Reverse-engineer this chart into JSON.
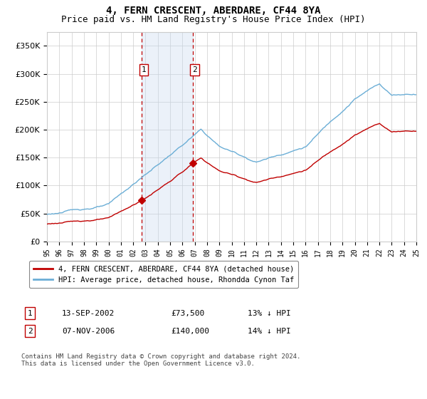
{
  "title": "4, FERN CRESCENT, ABERDARE, CF44 8YA",
  "subtitle": "Price paid vs. HM Land Registry's House Price Index (HPI)",
  "ylim": [
    0,
    375000
  ],
  "yticks": [
    0,
    50000,
    100000,
    150000,
    200000,
    250000,
    300000,
    350000
  ],
  "ytick_labels": [
    "£0",
    "£50K",
    "£100K",
    "£150K",
    "£200K",
    "£250K",
    "£300K",
    "£350K"
  ],
  "sale1_date": 2002.7,
  "sale1_price": 73500,
  "sale1_label": "1",
  "sale2_date": 2006.85,
  "sale2_price": 140000,
  "sale2_label": "2",
  "hpi_line_color": "#6baed6",
  "price_line_color": "#c00000",
  "grid_color": "#cccccc",
  "shaded_region_color": "#c6d9f0",
  "dashed_line_color": "#c00000",
  "background_color": "#ffffff",
  "legend_label_red": "4, FERN CRESCENT, ABERDARE, CF44 8YA (detached house)",
  "legend_label_blue": "HPI: Average price, detached house, Rhondda Cynon Taf",
  "table_row1": [
    "1",
    "13-SEP-2002",
    "£73,500",
    "13% ↓ HPI"
  ],
  "table_row2": [
    "2",
    "07-NOV-2006",
    "£140,000",
    "14% ↓ HPI"
  ],
  "footer_text": "Contains HM Land Registry data © Crown copyright and database right 2024.\nThis data is licensed under the Open Government Licence v3.0.",
  "title_fontsize": 10,
  "subtitle_fontsize": 9
}
